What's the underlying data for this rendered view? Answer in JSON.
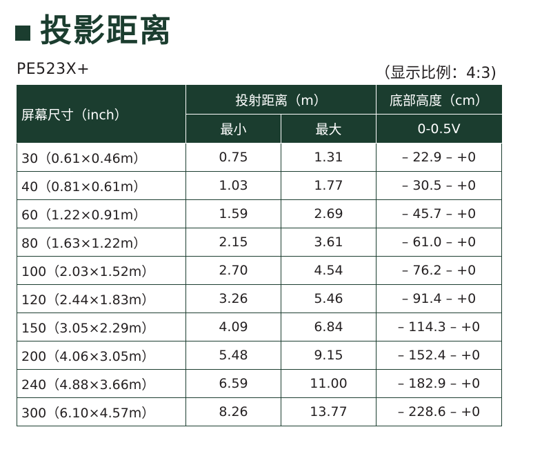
{
  "heading": {
    "title": "投影距离"
  },
  "model": "PE523X+",
  "ratio": "（显示比例：4:3)",
  "table": {
    "headers": {
      "screen_size": "屏幕尺寸（inch）",
      "throw_distance": "投射距离（m）",
      "min": "最小",
      "max": "最大",
      "bottom_height": "底部高度（cm）",
      "offset": "0-0.5V"
    },
    "rows": [
      {
        "size": "30（0.61×0.46m）",
        "min": "0.75",
        "max": "1.31",
        "height": "– 22.9 – +0"
      },
      {
        "size": "40（0.81×0.61m）",
        "min": "1.03",
        "max": "1.77",
        "height": "– 30.5 – +0"
      },
      {
        "size": "60（1.22×0.91m）",
        "min": "1.59",
        "max": "2.69",
        "height": "– 45.7 – +0"
      },
      {
        "size": "80（1.63×1.22m）",
        "min": "2.15",
        "max": "3.61",
        "height": "– 61.0 – +0"
      },
      {
        "size": "100（2.03×1.52m）",
        "min": "2.70",
        "max": "4.54",
        "height": "– 76.2 – +0"
      },
      {
        "size": "120（2.44×1.83m）",
        "min": "3.26",
        "max": "5.46",
        "height": "– 91.4 – +0"
      },
      {
        "size": "150（3.05×2.29m）",
        "min": "4.09",
        "max": "6.84",
        "height": "– 114.3 – +0"
      },
      {
        "size": "200（4.06×3.05m）",
        "min": "5.48",
        "max": "9.15",
        "height": "– 152.4 – +0"
      },
      {
        "size": "240（4.88×3.66m）",
        "min": "6.59",
        "max": "11.00",
        "height": "– 182.9 – +0"
      },
      {
        "size": "300（6.10×4.57m）",
        "min": "8.26",
        "max": "13.77",
        "height": "– 228.6 – +0"
      }
    ]
  }
}
